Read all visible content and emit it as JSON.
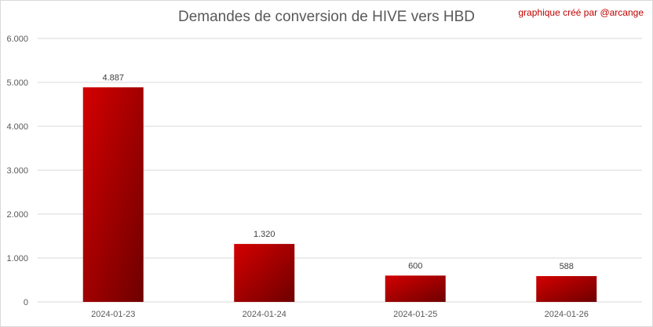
{
  "chart_data": {
    "type": "bar",
    "title": "Demandes de conversion de HIVE vers HBD",
    "credit": "graphique créé par @arcange",
    "categories": [
      "2024-01-23",
      "2024-01-24",
      "2024-01-25",
      "2024-01-26"
    ],
    "values": [
      4887,
      1320,
      600,
      588
    ],
    "data_labels": [
      "4.887",
      "1.320",
      "600",
      "588"
    ],
    "y_ticks": [
      0,
      1000,
      2000,
      3000,
      4000,
      5000,
      6000
    ],
    "y_tick_labels": [
      "0",
      "1.000",
      "2.000",
      "3.000",
      "4.000",
      "5.000",
      "6.000"
    ],
    "ylim": [
      0,
      6000
    ],
    "grid": true,
    "legend": "none",
    "colors": {
      "bar_light": "#d40000",
      "bar_dark": "#6e0000",
      "grid": "#d9d9d9",
      "credit": "#c00000"
    }
  }
}
